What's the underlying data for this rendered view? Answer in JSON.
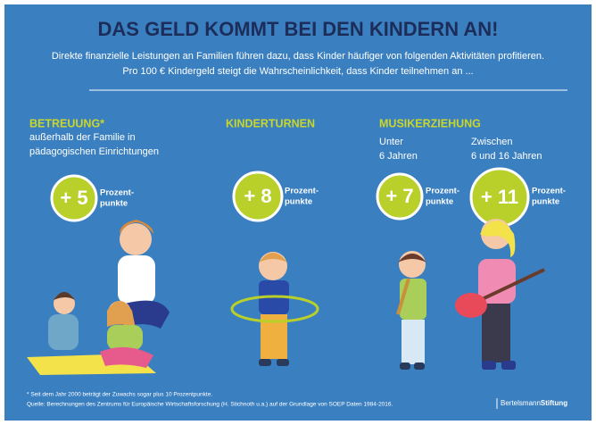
{
  "header": {
    "title": "DAS GELD KOMMT BEI DEN KINDERN AN!",
    "intro": [
      "Direkte finanzielle Leistungen an Familien führen dazu, dass Kinder häufiger von folgenden Aktivitäten profitieren.",
      "Pro 100 € Kindergeld steigt die Wahrscheinlichkeit, dass Kinder teilnehmen an ..."
    ]
  },
  "sections": [
    {
      "heading": "BETREUUNG*",
      "text": [
        "außerhalb der Familie in",
        "pädagogischen Einrichtungen"
      ],
      "items": [
        {
          "value": "+ 5",
          "unit": [
            "Prozent-",
            "punkte"
          ]
        }
      ]
    },
    {
      "heading": "KINDERTURNEN",
      "items": [
        {
          "value": "+ 8",
          "unit": [
            "Prozent-",
            "punkte"
          ]
        }
      ]
    },
    {
      "heading": "MUSIKERZIEHUNG",
      "items": [
        {
          "label": [
            "Unter",
            "6 Jahren"
          ],
          "value": "+ 7",
          "unit": [
            "Prozent-",
            "punkte"
          ]
        },
        {
          "label": [
            "Zwischen",
            "6 und 16 Jahren"
          ],
          "value": "+ 11",
          "unit": [
            "Prozent-",
            "punkte"
          ]
        }
      ]
    }
  ],
  "footnotes": [
    "* Seit dem Jahr 2000 beträgt der Zuwachs sogar plus 10 Prozentpunkte.",
    "Quelle: Berechnungen des Zentrums für Europäische Wirtschaftsforschung (H. Stichnoth u.a.) auf der Grundlage von SOEP Daten 1984-2016."
  ],
  "logo": {
    "part1": "Bertelsmann",
    "part2": "Stiftung"
  }
}
